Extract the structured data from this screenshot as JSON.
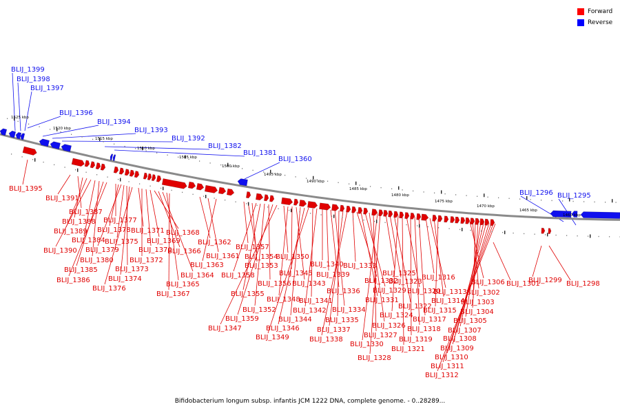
{
  "legend": {
    "items": [
      {
        "label": "Forward",
        "color": "#ff0000"
      },
      {
        "label": "Reverse",
        "color": "#0000ff"
      }
    ]
  },
  "caption": "Bifidobacterium longum subsp. infantis JCM 1222 DNA, complete genome. - 0..28289...",
  "colors": {
    "forward": "#e00000",
    "reverse": "#1010ee",
    "backbone": "#888888"
  },
  "scale_labels": [
    "1525 kbp",
    "1520 kbp",
    "1515 kbp",
    "1510 kbp",
    "1505 kbp",
    "1500 kbp",
    "1495 kbp",
    "1490 kbp",
    "1485 kbp",
    "1480 kbp",
    "1475 kbp",
    "1470 kbp",
    "1465 kbp",
    "1460 kbp"
  ],
  "reverse_genes": [
    "BLIJ_1399",
    "BLIJ_1398",
    "BLIJ_1397",
    "BLIJ_1396",
    "BLIJ_1394",
    "BLIJ_1393",
    "BLIJ_1392",
    "BLIJ_1382",
    "BLIJ_1381",
    "BLIJ_1360",
    "BLIJ_1296",
    "BLIJ_1295"
  ],
  "forward_genes": [
    "BLIJ_1395",
    "BLIJ_1391",
    "BLIJ_1387",
    "BLIJ_1388",
    "BLIJ_1389",
    "BLIJ_1390",
    "BLIJ_1384",
    "BLIJ_1380",
    "BLIJ_1385",
    "BLIJ_1386",
    "BLIJ_1377",
    "BLIJ_1378",
    "BLIJ_1379",
    "BLIJ_1375",
    "BLIJ_1373",
    "BLIJ_1374",
    "BLIJ_1376",
    "BLIJ_1371",
    "BLIJ_1372",
    "BLIJ_1370",
    "BLIJ_1369",
    "BLIJ_1368",
    "BLIJ_1366",
    "BLIJ_1364",
    "BLIJ_1365",
    "BLIJ_1367",
    "BLIJ_1362",
    "BLIJ_1361",
    "BLIJ_1363",
    "BLIJ_1357",
    "BLIJ_1354",
    "BLIJ_1353",
    "BLIJ_1358",
    "BLIJ_1355",
    "BLIJ_1352",
    "BLIJ_1356",
    "BLIJ_1359",
    "BLIJ_1347",
    "BLIJ_1350",
    "BLIJ_1348",
    "BLIJ_1345",
    "BLIJ_1343",
    "BLIJ_1344",
    "BLIJ_1346",
    "BLIJ_1349",
    "BLIJ_1341",
    "BLIJ_1342",
    "BLIJ_1340",
    "BLIJ_1339",
    "BLIJ_1336",
    "BLIJ_1334",
    "BLIJ_1335",
    "BLIJ_1337",
    "BLIJ_1338",
    "BLIJ_1333",
    "BLIJ_1332",
    "BLIJ_1331",
    "BLIJ_1329",
    "BLIJ_1326",
    "BLIJ_1327",
    "BLIJ_1330",
    "BLIJ_1328",
    "BLIJ_1325",
    "BLIJ_1323",
    "BLIJ_1322",
    "BLIJ_1324",
    "BLIJ_1321",
    "BLIJ_1320",
    "BLIJ_1319",
    "BLIJ_1318",
    "BLIJ_1317",
    "BLIJ_1316",
    "BLIJ_1313",
    "BLIJ_1314",
    "BLIJ_1315",
    "BLIJ_1306",
    "BLIJ_1302",
    "BLIJ_1303",
    "BLIJ_1304",
    "BLIJ_1305",
    "BLIJ_1307",
    "BLIJ_1308",
    "BLIJ_1309",
    "BLIJ_1310",
    "BLIJ_1311",
    "BLIJ_1312",
    "BLIJ_1301",
    "BLIJ_1299",
    "BLIJ_1298"
  ]
}
